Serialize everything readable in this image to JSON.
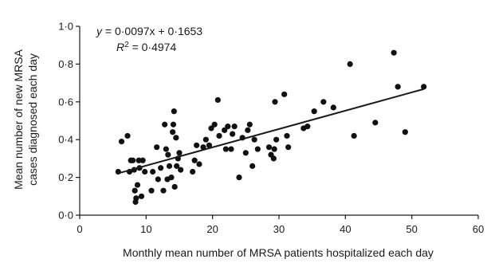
{
  "chart_data": {
    "type": "scatter",
    "xlabel": "Monthly mean number of MRSA patients hospitalized each day",
    "ylabel": "Mean number of new MRSA cases diagnosed each day",
    "xlim": [
      0,
      60
    ],
    "ylim": [
      0,
      1.0
    ],
    "x_ticks": [
      "0",
      "10",
      "20",
      "30",
      "40",
      "50",
      "60"
    ],
    "y_ticks": [
      "0·0",
      "0·2",
      "0·4",
      "0·6",
      "0·8",
      "1·0"
    ],
    "grid": false,
    "annotation": {
      "equation_prefix": "y",
      "equation_rest": " = 0·0097x + 0·1653",
      "r2_label": "R",
      "r2_sup": "2",
      "r2_value": " = 0·4974"
    },
    "trendline": {
      "slope": 0.0097,
      "intercept": 0.1653,
      "x_range": [
        5.6,
        51.8
      ]
    },
    "points": [
      {
        "x": 5.8,
        "y": 0.23
      },
      {
        "x": 6.3,
        "y": 0.39
      },
      {
        "x": 7.2,
        "y": 0.42
      },
      {
        "x": 7.5,
        "y": 0.23
      },
      {
        "x": 7.7,
        "y": 0.29
      },
      {
        "x": 8.0,
        "y": 0.29
      },
      {
        "x": 8.2,
        "y": 0.24
      },
      {
        "x": 8.3,
        "y": 0.13
      },
      {
        "x": 8.4,
        "y": 0.07
      },
      {
        "x": 8.5,
        "y": 0.09
      },
      {
        "x": 8.7,
        "y": 0.16
      },
      {
        "x": 8.9,
        "y": 0.29
      },
      {
        "x": 9.0,
        "y": 0.25
      },
      {
        "x": 9.3,
        "y": 0.1
      },
      {
        "x": 9.5,
        "y": 0.29
      },
      {
        "x": 9.8,
        "y": 0.23
      },
      {
        "x": 10.8,
        "y": 0.13
      },
      {
        "x": 11.0,
        "y": 0.23
      },
      {
        "x": 11.6,
        "y": 0.36
      },
      {
        "x": 11.8,
        "y": 0.19
      },
      {
        "x": 12.2,
        "y": 0.25
      },
      {
        "x": 12.6,
        "y": 0.13
      },
      {
        "x": 12.8,
        "y": 0.48
      },
      {
        "x": 13.0,
        "y": 0.35
      },
      {
        "x": 13.2,
        "y": 0.19
      },
      {
        "x": 13.3,
        "y": 0.32
      },
      {
        "x": 13.5,
        "y": 0.26
      },
      {
        "x": 13.8,
        "y": 0.2
      },
      {
        "x": 14.0,
        "y": 0.44
      },
      {
        "x": 14.1,
        "y": 0.48
      },
      {
        "x": 14.2,
        "y": 0.55
      },
      {
        "x": 14.3,
        "y": 0.15
      },
      {
        "x": 14.5,
        "y": 0.41
      },
      {
        "x": 14.6,
        "y": 0.26
      },
      {
        "x": 14.8,
        "y": 0.3
      },
      {
        "x": 15.0,
        "y": 0.33
      },
      {
        "x": 15.2,
        "y": 0.24
      },
      {
        "x": 17.0,
        "y": 0.23
      },
      {
        "x": 17.3,
        "y": 0.29
      },
      {
        "x": 17.6,
        "y": 0.37
      },
      {
        "x": 18.0,
        "y": 0.27
      },
      {
        "x": 18.6,
        "y": 0.36
      },
      {
        "x": 19.0,
        "y": 0.4
      },
      {
        "x": 19.5,
        "y": 0.37
      },
      {
        "x": 19.8,
        "y": 0.46
      },
      {
        "x": 20.3,
        "y": 0.48
      },
      {
        "x": 20.8,
        "y": 0.61
      },
      {
        "x": 21.0,
        "y": 0.42
      },
      {
        "x": 21.8,
        "y": 0.45
      },
      {
        "x": 22.0,
        "y": 0.35
      },
      {
        "x": 22.3,
        "y": 0.47
      },
      {
        "x": 22.8,
        "y": 0.35
      },
      {
        "x": 23.0,
        "y": 0.43
      },
      {
        "x": 23.3,
        "y": 0.47
      },
      {
        "x": 24.0,
        "y": 0.2
      },
      {
        "x": 24.5,
        "y": 0.41
      },
      {
        "x": 25.0,
        "y": 0.33
      },
      {
        "x": 25.3,
        "y": 0.45
      },
      {
        "x": 25.6,
        "y": 0.48
      },
      {
        "x": 26.0,
        "y": 0.26
      },
      {
        "x": 26.3,
        "y": 0.4
      },
      {
        "x": 26.8,
        "y": 0.35
      },
      {
        "x": 28.5,
        "y": 0.36
      },
      {
        "x": 28.8,
        "y": 0.32
      },
      {
        "x": 29.2,
        "y": 0.3
      },
      {
        "x": 29.3,
        "y": 0.35
      },
      {
        "x": 29.4,
        "y": 0.6
      },
      {
        "x": 29.6,
        "y": 0.4
      },
      {
        "x": 30.8,
        "y": 0.64
      },
      {
        "x": 31.2,
        "y": 0.42
      },
      {
        "x": 31.4,
        "y": 0.36
      },
      {
        "x": 33.7,
        "y": 0.46
      },
      {
        "x": 34.3,
        "y": 0.47
      },
      {
        "x": 35.3,
        "y": 0.55
      },
      {
        "x": 36.7,
        "y": 0.6
      },
      {
        "x": 38.2,
        "y": 0.57
      },
      {
        "x": 40.7,
        "y": 0.8
      },
      {
        "x": 41.3,
        "y": 0.42
      },
      {
        "x": 44.5,
        "y": 0.49
      },
      {
        "x": 47.3,
        "y": 0.86
      },
      {
        "x": 47.9,
        "y": 0.68
      },
      {
        "x": 49.0,
        "y": 0.44
      },
      {
        "x": 51.8,
        "y": 0.68
      }
    ]
  }
}
